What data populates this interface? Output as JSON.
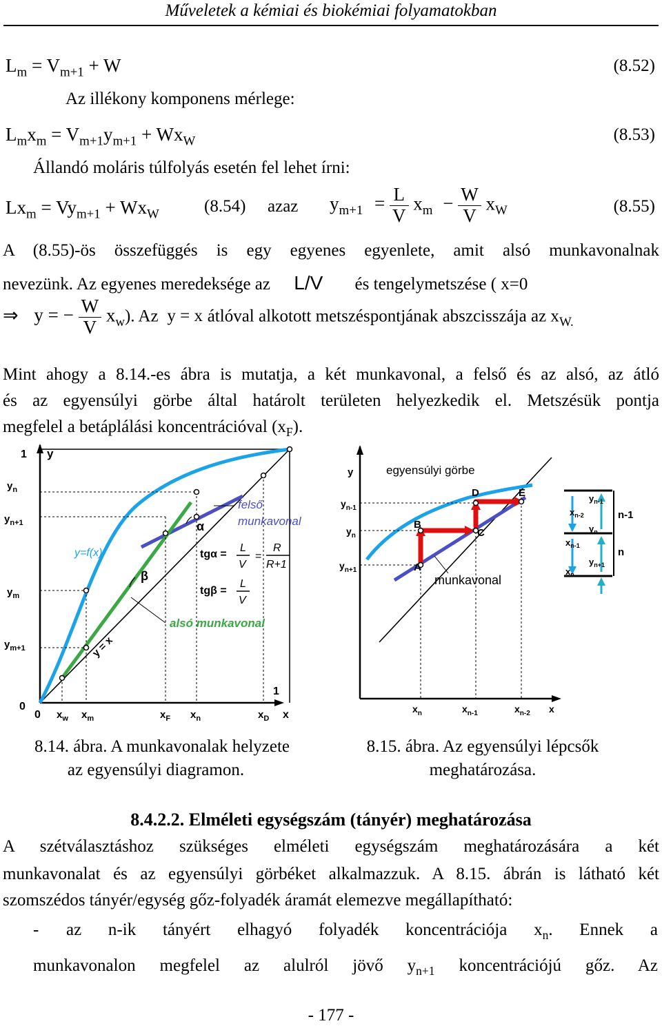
{
  "header": "Műveletek a kémiai és biokémiai folyamatokban",
  "eq_852": {
    "lhs": "L",
    "lhs_sub": "m",
    "mid": " = V",
    "mid_sub": "m+1",
    "rhs": " + W",
    "num": "(8.52)"
  },
  "line_volatile": "Az illékony komponens mérlege:",
  "eq_853": {
    "a": "L",
    "a_sub": "m",
    "b": "x",
    "b_sub": "m",
    "c": " = V",
    "c_sub": "m+1",
    "d": "y",
    "d_sub": "m+1",
    "e": " + Wx",
    "e_sub": "W",
    "num": "(8.53)"
  },
  "line_const": "Állandó moláris túlfolyás esetén fel lehet írni:",
  "eq_854": {
    "a": "Lx",
    "a_sub": "m",
    "b": " = Vy",
    "b_sub": "m+1",
    "c": " + Wx",
    "c_sub": "W",
    "num": "(8.54)",
    "azaz": "azaz"
  },
  "eq_855": {
    "y": "y",
    "y_sub": "m+1",
    "eq": "=",
    "f1_num": "L",
    "f1_den": "V",
    "x": "x",
    "x_sub": "m",
    "minus": "−",
    "f2_num": "W",
    "f2_den": "V",
    "xw": "x",
    "xw_sub": "W",
    "num": "(8.55)"
  },
  "para1": {
    "line1": "A (8.55)-ös összefüggés is egy egyenes egyenlete, amit alsó munkavonalnak",
    "line2_a": "nevezünk. Az egyenes meredeksége az",
    "line2_lv": "L/V",
    "line2_b": "és tengelymetszése ( x=0"
  },
  "para2": {
    "arrow": "⇒",
    "y_eq": "y = −",
    "f_num": "W",
    "f_den": "V",
    "xw": "x",
    "xw_sub": "w",
    "rest_a": "). Az",
    "yx": "y = x",
    "rest_b": "átlóval alkotott metszéspontjának abszcisszája az x",
    "rest_sub": "W."
  },
  "para3": {
    "line1": "Mint ahogy a 8.14.-es ábra is mutatja, a két munkavonal, a felső és az alsó, az átló",
    "line2": "és az egyensúlyi görbe által határolt területen helyezkedik el. Metszésük pontja",
    "line3_a": "megfelel a betáplálási koncentrációval (x",
    "line3_sub": "F",
    "line3_b": ")."
  },
  "fig14": {
    "y_axis": "y",
    "x_axis": "x",
    "one_y": "1",
    "one_x": "1",
    "zero": "0",
    "origin": "0",
    "yn": "y",
    "yn_sub": "n",
    "yn1": "y",
    "yn1_sub": "n+1",
    "ym": "y",
    "ym_sub": "m",
    "ym1": "y",
    "ym1_sub": "m+1",
    "xw": "x",
    "xw_sub": "w",
    "xm": "x",
    "xm_sub": "m",
    "xf": "x",
    "xf_sub": "F",
    "xn": "x",
    "xn_sub": "n",
    "xd": "x",
    "xd_sub": "D",
    "eq_curve": "y=f(x)",
    "diag": "y = x",
    "upper": "felső",
    "upper2": "munkavonal",
    "lower": "alsó munkavonal",
    "alpha": "α",
    "beta": "β",
    "tg_alpha": "tgα =",
    "tg_beta": "tgβ =",
    "frac_L": "L",
    "frac_V": "V",
    "frac_R": "R",
    "frac_R1": "R+1",
    "eqsign": "=",
    "colors": {
      "curve": "#1aa3e8",
      "upper": "#4a4fc4",
      "lower": "#3aa843"
    }
  },
  "fig15": {
    "y_axis": "y",
    "title": "egyensúlyi görbe",
    "worklabel": "munkavonal",
    "yn_1": "y",
    "yn_1_sub": "n-1",
    "yn": "y",
    "yn_sub": "n",
    "yn1": "y",
    "yn1_sub": "n+1",
    "xn": "x",
    "xn_sub": "n",
    "xn_1": "x",
    "xn_1_sub": "n-1",
    "xn_2": "x",
    "xn_2_sub": "n-2",
    "xaxis": "x",
    "A": "A",
    "B": "B",
    "C": "C",
    "D": "D",
    "E": "E",
    "tray_n1": "n-1",
    "tray_n": "n",
    "box_yn1": "y",
    "box_yn1_sub": "n-1",
    "box_xn2": "x",
    "box_xn2_sub": "n-2",
    "box_yn": "y",
    "box_yn_sub": "n",
    "box_xn1": "x",
    "box_xn1_sub": "n-1",
    "box_yn1b": "y",
    "box_yn1b_sub": "n+1",
    "box_xn": "x",
    "box_xn_sub": "n",
    "colors": {
      "curve": "#1aa3e8",
      "work": "#4a4fc4",
      "steps": "#e01010"
    }
  },
  "cap14": {
    "line1": "8.14. ábra. A munkavonalak helyzete",
    "line2": "az egyensúlyi diagramon."
  },
  "cap15": {
    "line1": "8.15. ábra. Az egyensúlyi lépcsők",
    "line2": "meghatározása."
  },
  "section": "8.4.2.2. Elméleti egységszám (tányér) meghatározása",
  "para4": {
    "line1": "A szétválasztáshoz szükséges elméleti egységszám meghatározására a két",
    "line2": "munkavonalat és az egyensúlyi görbéket alkalmazzuk. A 8.15. ábrán is látható két",
    "line3": "szomszédos tányér/egység gőz-folyadék áramát elemezve megállapítható:"
  },
  "bullet": {
    "dash": "-",
    "line1_a": "az n-ik tányért elhagyó folyadék koncentrációja",
    "line1_x": "x",
    "line1_sub": "n",
    "line1_b": ". Ennek a",
    "line2_a": "munkavonalon megfelel az alulról jövő",
    "line2_y": "y",
    "line2_sub": "n+1",
    "line2_b": "koncentrációjú gőz. Az"
  },
  "page": "- 177 -"
}
